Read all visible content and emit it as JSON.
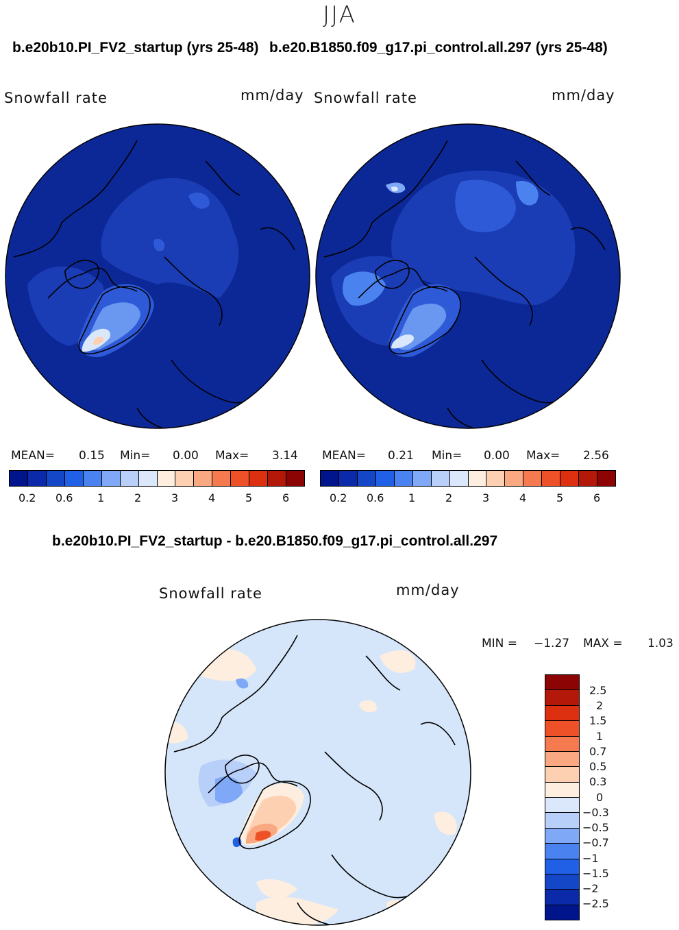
{
  "season": "JJA",
  "panels": [
    {
      "case_title": "b.e20b10.PI_FV2_startup (yrs 25-48)",
      "variable": "Snowfall rate",
      "units": "mm/day",
      "stats": {
        "mean_label": "MEAN=",
        "mean": "0.15",
        "min_label": "Min=",
        "min": "0.00",
        "max_label": "Max=",
        "max": "3.14"
      }
    },
    {
      "case_title": "b.e20.B1850.f09_g17.pi_control.all.297 (yrs 25-48)",
      "variable": "Snowfall rate",
      "units": "mm/day",
      "stats": {
        "mean_label": "MEAN=",
        "mean": "0.21",
        "min_label": "Min=",
        "min": "0.00",
        "max_label": "Max=",
        "max": "2.56"
      }
    }
  ],
  "colorbar": {
    "colors": [
      "#00148c",
      "#0a2aaa",
      "#1446c8",
      "#2060e6",
      "#4a82f0",
      "#7fa8f6",
      "#b8cffa",
      "#dbe8fc",
      "#fdeee0",
      "#fcd0b0",
      "#f9a882",
      "#f57a50",
      "#ee5028",
      "#dc3010",
      "#b41808",
      "#8c0404"
    ],
    "tick_labels": [
      "0.2",
      "0.6",
      "1",
      "2",
      "3",
      "4",
      "5",
      "6"
    ]
  },
  "diff": {
    "title": "b.e20b10.PI_FV2_startup - b.e20.B1850.f09_g17.pi_control.all.297",
    "variable": "Snowfall rate",
    "units": "mm/day",
    "minmax": {
      "min_label": "MIN =",
      "min": "−1.27",
      "max_label": "MAX =",
      "max": "1.03"
    },
    "colorbar_colors_top_to_bottom": [
      "#8c0404",
      "#b41808",
      "#dc3010",
      "#ee5028",
      "#f57a50",
      "#f9a882",
      "#fcd0b0",
      "#fdeee0",
      "#dbe8fc",
      "#b8cffa",
      "#7fa8f6",
      "#4a82f0",
      "#2060e6",
      "#1446c8",
      "#0a2aaa",
      "#00148c"
    ],
    "tick_labels": [
      "2.5",
      "2",
      "1.5",
      "1",
      "0.7",
      "0.5",
      "0.3",
      "0",
      "−0.3",
      "−0.5",
      "−0.7",
      "−1",
      "−1.5",
      "−2",
      "−2.5"
    ]
  },
  "colors": {
    "ocean_base": "#0c2896",
    "diff_base": "#d6e6fa"
  }
}
